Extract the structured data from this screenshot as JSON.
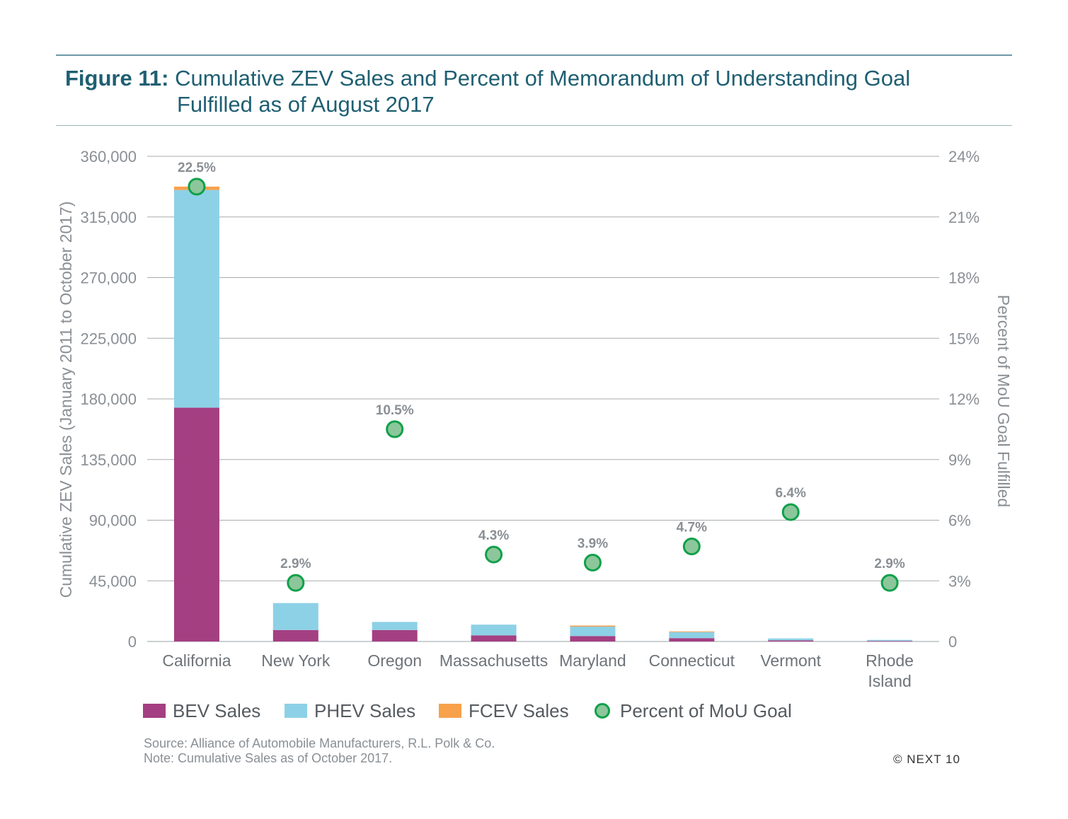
{
  "header": {
    "figure_label": "Figure 11:",
    "title_line1": "Cumulative ZEV Sales and Percent of Memorandum of Understanding Goal",
    "title_line2": "Fulfilled as of August 2017"
  },
  "chart_data": {
    "type": "bar",
    "stacked": true,
    "categories": [
      [
        "California"
      ],
      [
        "New York"
      ],
      [
        "Oregon"
      ],
      [
        "Massachusetts"
      ],
      [
        "Maryland"
      ],
      [
        "Connecticut"
      ],
      [
        "Vermont"
      ],
      [
        "Rhode",
        "Island"
      ]
    ],
    "series": [
      {
        "name": "BEV Sales",
        "color": "#a43f82",
        "values": [
          173500,
          8500,
          8500,
          4500,
          4000,
          2500,
          800,
          400
        ]
      },
      {
        "name": "PHEV Sales",
        "color": "#8dd1e6",
        "values": [
          161500,
          20000,
          6000,
          8000,
          7000,
          4500,
          1500,
          800
        ]
      },
      {
        "name": "FCEV Sales",
        "color": "#f7a14b",
        "values": [
          2500,
          0,
          0,
          0,
          800,
          500,
          0,
          0
        ]
      }
    ],
    "line_series": {
      "name": "Percent of MoU Goal",
      "axis": "right",
      "color": "#8cc79b",
      "edge_color": "#10a04a",
      "values": [
        22.5,
        2.9,
        10.5,
        4.3,
        3.9,
        4.7,
        6.4,
        2.9
      ],
      "labels": [
        "22.5%",
        "2.9%",
        "10.5%",
        "4.3%",
        "3.9%",
        "4.7%",
        "6.4%",
        "2.9%"
      ]
    },
    "ylabel": "Cumulative ZEV Sales (January 2011 to October 2017)",
    "y2label": "Percent of MoU Goal Fulfilled",
    "ylim": [
      0,
      360000
    ],
    "y2lim": [
      0,
      24
    ],
    "yticks": [
      "0",
      "45,000",
      "90,000",
      "135,000",
      "180,000",
      "225,000",
      "270,000",
      "315,000",
      "360,000"
    ],
    "y2ticks": [
      "0",
      "3%",
      "6%",
      "9%",
      "12%",
      "15%",
      "18%",
      "21%",
      "24%"
    ],
    "grid": true,
    "legend": "bottom"
  },
  "footer": {
    "source": "Source: Alliance of Automobile Manufacturers, R.L. Polk & Co.",
    "note": "Note: Cumulative Sales as of October 2017.",
    "copyright": "© NEXT 10"
  }
}
